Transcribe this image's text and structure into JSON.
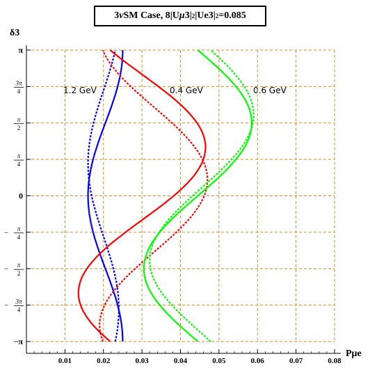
{
  "title_parts": {
    "pre": "3",
    "nu": "ν",
    "mid": "SM Case, 8|U",
    "mu": "μ",
    "mid2": "3|",
    "sup1": "2",
    "mid3": " |Ue3|",
    "sup2": "2",
    "post": "=0.085"
  },
  "chart_data": {
    "type": "line",
    "title": "3νSM Case, 8|Uμ3|²|Ue3|²=0.085",
    "xlabel": "Pμe",
    "ylabel": "δ3",
    "xlim": [
      0,
      0.08
    ],
    "ylim": [
      -3.1416,
      3.1416
    ],
    "x_ticks": [
      "0.01",
      "0.02",
      "0.03",
      "0.04",
      "0.05",
      "0.06",
      "0.07",
      "0.08"
    ],
    "y_ticks": [
      "-π",
      "-3π/4",
      "-π/2",
      "-π/4",
      "0",
      "π/4",
      "π/2",
      "3π/4",
      "π"
    ],
    "grid": true,
    "annotations": [
      "1.2 GeV",
      "0.4 GeV",
      "0.6 GeV"
    ],
    "series": [
      {
        "energy": "1.2 GeV",
        "style": "solid",
        "color": "#0000ff",
        "center": 0.0205,
        "amplitude": 0.0045,
        "phase_deg": -90
      },
      {
        "energy": "1.2 GeV",
        "style": "dotted",
        "color": "#0000ff",
        "center": 0.02,
        "amplitude": 0.004,
        "phase_deg": -130
      },
      {
        "energy": "0.4 GeV",
        "style": "solid",
        "color": "#ff0000",
        "center": 0.03,
        "amplitude": 0.0165,
        "phase_deg": 30
      },
      {
        "energy": "0.4 GeV",
        "style": "dotted",
        "color": "#ff0000",
        "center": 0.033,
        "amplitude": 0.014,
        "phase_deg": 70
      },
      {
        "energy": "0.6 GeV",
        "style": "solid",
        "color": "#00ff00",
        "center": 0.0445,
        "amplitude": 0.014,
        "phase_deg": 0
      },
      {
        "energy": "0.6 GeV",
        "style": "dotted",
        "color": "#00ff00",
        "center": 0.0455,
        "amplitude": 0.0135,
        "phase_deg": -10
      }
    ]
  }
}
